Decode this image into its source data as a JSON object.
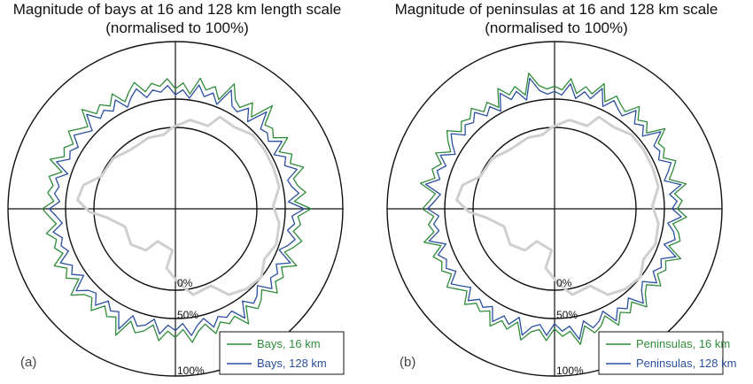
{
  "chart_data": [
    {
      "panel": "(a)",
      "type": "polar-line",
      "title_line1": "Magnitude of bays at 16 and 128 km length scale",
      "title_line2": "(normalised to 100%)",
      "ring_labels": [
        "0%",
        "50%",
        "100%"
      ],
      "series": [
        {
          "name": "Bays, 16 km",
          "color": "#2e8b3a",
          "values": [
            45,
            52,
            40,
            60,
            48,
            55,
            42,
            66,
            50,
            45,
            58,
            44,
            70,
            48,
            52,
            46,
            60,
            43,
            55,
            49,
            62,
            47,
            50,
            58,
            44,
            63,
            48,
            52,
            45,
            57,
            50,
            42,
            61,
            46,
            54,
            49,
            59,
            43,
            51,
            56,
            45,
            64,
            48,
            53,
            47,
            58,
            44,
            50,
            62,
            46,
            55,
            48,
            60,
            43,
            52,
            57,
            46,
            68,
            49,
            54,
            45,
            59,
            47,
            51,
            63,
            44,
            56,
            49,
            61,
            46,
            53,
            48,
            58,
            45,
            52,
            60,
            47,
            55,
            50,
            57,
            44,
            62,
            48,
            53,
            46,
            59,
            51,
            45,
            64,
            49,
            55,
            47,
            58,
            43,
            52,
            60,
            46,
            54,
            49,
            57
          ]
        },
        {
          "name": "Bays, 128 km",
          "color": "#2b4fa0",
          "values": [
            38,
            44,
            35,
            52,
            40,
            47,
            36,
            58,
            42,
            39,
            50,
            37,
            60,
            41,
            44,
            39,
            52,
            36,
            47,
            42,
            54,
            40,
            43,
            50,
            37,
            55,
            41,
            45,
            38,
            49,
            43,
            35,
            53,
            39,
            46,
            42,
            51,
            36,
            44,
            48,
            38,
            56,
            41,
            45,
            40,
            50,
            37,
            43,
            54,
            39,
            47,
            41,
            52,
            36,
            45,
            49,
            39,
            60,
            42,
            46,
            38,
            51,
            40,
            44,
            55,
            37,
            48,
            42,
            53,
            39,
            45,
            41,
            50,
            38,
            44,
            52,
            40,
            47,
            43,
            49,
            37,
            54,
            41,
            45,
            39,
            51,
            44,
            38,
            56,
            42,
            47,
            40,
            50,
            36,
            45,
            52,
            39,
            46,
            42,
            49
          ]
        }
      ],
      "legend_placement": "bottom-right"
    },
    {
      "panel": "(b)",
      "type": "polar-line",
      "title_line1": "Magnitude of peninsulas at 16 and 128 km scale",
      "title_line2": "(normalised to 100%)",
      "ring_labels": [
        "0%",
        "50%",
        "100%"
      ],
      "series": [
        {
          "name": "Peninsulas, 16 km",
          "color": "#2e8b3a",
          "values": [
            48,
            44,
            58,
            42,
            52,
            46,
            62,
            43,
            55,
            49,
            45,
            60,
            47,
            53,
            44,
            64,
            48,
            51,
            45,
            57,
            50,
            43,
            61,
            46,
            54,
            48,
            59,
            44,
            52,
            56,
            45,
            63,
            48,
            53,
            47,
            58,
            44,
            50,
            62,
            46,
            55,
            48,
            60,
            43,
            52,
            57,
            46,
            66,
            49,
            54,
            45,
            59,
            47,
            51,
            63,
            44,
            56,
            49,
            61,
            46,
            53,
            48,
            58,
            45,
            52,
            60,
            47,
            55,
            50,
            57,
            44,
            62,
            48,
            53,
            46,
            59,
            51,
            45,
            64,
            49,
            55,
            47,
            58,
            43,
            52,
            60,
            46,
            54,
            49,
            57,
            45,
            52,
            40,
            60,
            48,
            55,
            42,
            66,
            50,
            45
          ]
        },
        {
          "name": "Peninsulas, 128 km",
          "color": "#2b4fa0",
          "values": [
            42,
            38,
            52,
            36,
            46,
            40,
            56,
            37,
            49,
            43,
            39,
            54,
            41,
            47,
            38,
            58,
            42,
            45,
            39,
            51,
            44,
            37,
            55,
            40,
            48,
            42,
            53,
            38,
            46,
            50,
            39,
            57,
            42,
            47,
            41,
            52,
            38,
            44,
            56,
            40,
            49,
            42,
            54,
            37,
            46,
            51,
            40,
            60,
            43,
            48,
            39,
            53,
            41,
            45,
            57,
            38,
            50,
            43,
            55,
            40,
            47,
            42,
            52,
            39,
            46,
            54,
            41,
            49,
            44,
            51,
            38,
            56,
            42,
            47,
            40,
            53,
            45,
            39,
            58,
            43,
            49,
            41,
            52,
            37,
            46,
            54,
            40,
            48,
            43,
            51,
            39,
            46,
            35,
            54,
            42,
            49,
            36,
            60,
            44,
            39
          ]
        }
      ],
      "legend_placement": "bottom-right"
    }
  ],
  "panel_labels": [
    "(a)",
    "(b)"
  ]
}
